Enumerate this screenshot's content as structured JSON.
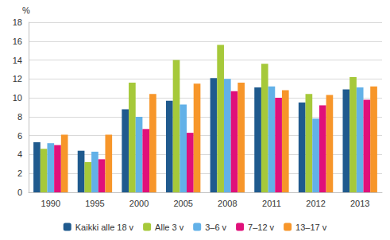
{
  "chart_data": {
    "type": "bar",
    "y_label": "%",
    "categories": [
      "1990",
      "1995",
      "2000",
      "2005",
      "2008",
      "2011",
      "2012",
      "2013"
    ],
    "series": [
      {
        "name": "Kaikki alle 18 v",
        "color": "#1f5a8e",
        "values": [
          5.3,
          4.4,
          8.8,
          9.7,
          12.1,
          11.1,
          9.5,
          10.9
        ]
      },
      {
        "name": "Alle 3 v",
        "color": "#a6c93a",
        "values": [
          4.6,
          3.2,
          11.6,
          14.0,
          15.6,
          13.6,
          10.4,
          12.2
        ]
      },
      {
        "name": "3–6 v",
        "color": "#62b1e8",
        "values": [
          5.2,
          4.3,
          8.0,
          9.3,
          12.0,
          11.2,
          7.8,
          11.1
        ]
      },
      {
        "name": "7–12 v",
        "color": "#e0107a",
        "values": [
          5.0,
          3.5,
          6.7,
          6.3,
          10.7,
          10.0,
          9.2,
          9.8
        ]
      },
      {
        "name": "13–17 v",
        "color": "#f7962a",
        "values": [
          6.1,
          6.1,
          10.4,
          11.5,
          11.6,
          10.8,
          10.3,
          11.2
        ]
      }
    ],
    "ylim": [
      0,
      18
    ],
    "yticks": [
      0,
      2,
      4,
      6,
      8,
      10,
      12,
      14,
      16,
      18
    ],
    "grid": true,
    "legend": "bottom"
  }
}
